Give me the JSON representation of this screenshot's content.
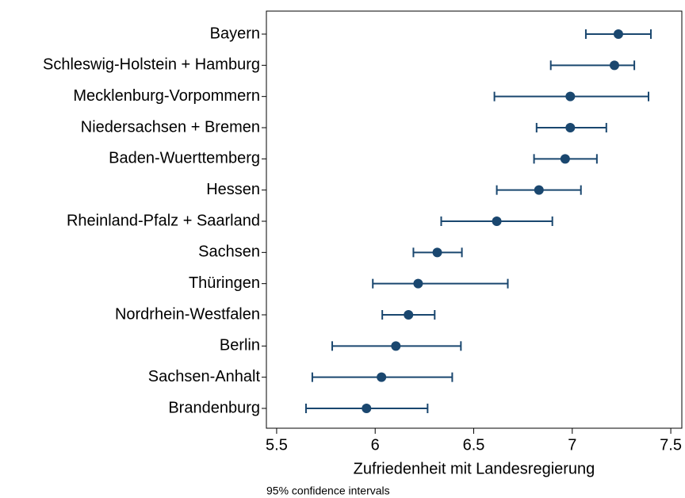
{
  "chart_data": {
    "type": "dot-ci",
    "categories": [
      "Bayern",
      "Schleswig-Holstein + Hamburg",
      "Mecklenburg-Vorpommern",
      "Niedersachsen + Bremen",
      "Baden-Wuerttemberg",
      "Hessen",
      "Rheinland-Pfalz + Saarland",
      "Sachsen",
      "Thüringen",
      "Nordrhein-Westfalen",
      "Berlin",
      "Sachsen-Anhalt",
      "Brandenburg"
    ],
    "values": [
      7.234,
      7.214,
      6.99,
      6.99,
      6.964,
      6.831,
      6.617,
      6.315,
      6.218,
      6.169,
      6.105,
      6.032,
      5.956
    ],
    "ci_low": [
      7.069,
      6.891,
      6.605,
      6.819,
      6.806,
      6.617,
      6.335,
      6.194,
      5.988,
      6.036,
      5.782,
      5.681,
      5.649
    ],
    "ci_high": [
      7.399,
      7.315,
      7.387,
      7.173,
      7.125,
      7.044,
      6.899,
      6.44,
      6.673,
      6.302,
      6.435,
      6.391,
      6.266
    ],
    "color": "#1a476f",
    "xlim": [
      5.448,
      7.556
    ],
    "xticks": [
      5.5,
      6,
      6.5,
      7,
      7.5
    ],
    "xlabel": "Zufriedenheit mit Landesregierung",
    "note": "95% confidence intervals"
  }
}
